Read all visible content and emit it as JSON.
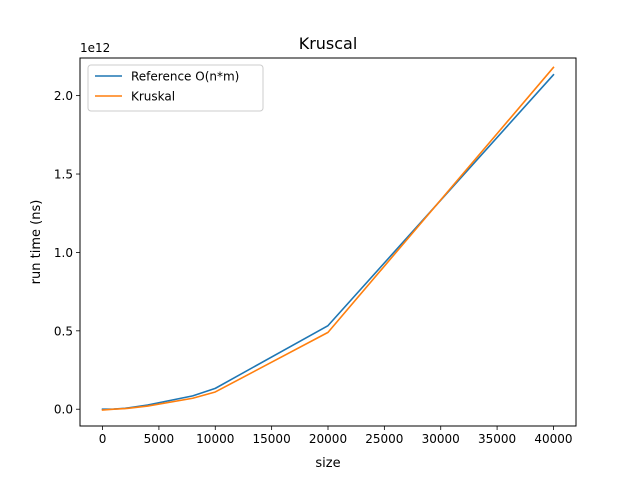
{
  "chart_data": {
    "type": "line",
    "title": "Kruscal",
    "xlabel": "size",
    "ylabel": "run time (ns)",
    "y_offset_label": "1e12",
    "xlim": [
      -2000,
      42000
    ],
    "ylim": [
      -0.107,
      2.24
    ],
    "x_ticks": [
      0,
      5000,
      10000,
      15000,
      20000,
      25000,
      30000,
      35000,
      40000
    ],
    "x_tick_labels": [
      "0",
      "5000",
      "10000",
      "15000",
      "20000",
      "25000",
      "30000",
      "35000",
      "40000"
    ],
    "y_ticks": [
      0.0,
      0.5,
      1.0,
      1.5,
      2.0
    ],
    "y_tick_labels": [
      "0.0",
      "0.5",
      "1.0",
      "1.5",
      "2.0"
    ],
    "grid": false,
    "legend_position": "upper-left",
    "series": [
      {
        "name": "Reference O(n*m)",
        "color": "#1f77b4",
        "x": [
          0,
          1000,
          2000,
          4000,
          8000,
          10000,
          20000,
          40000
        ],
        "y": [
          0.0,
          0.001,
          0.006,
          0.027,
          0.085,
          0.133,
          0.533,
          2.133
        ]
      },
      {
        "name": "Kruskal",
        "color": "#ff7f0e",
        "x": [
          0,
          1000,
          2000,
          4000,
          8000,
          10000,
          20000,
          40000
        ],
        "y": [
          -0.005,
          0.0,
          0.004,
          0.02,
          0.07,
          0.11,
          0.49,
          2.18
        ]
      }
    ]
  }
}
